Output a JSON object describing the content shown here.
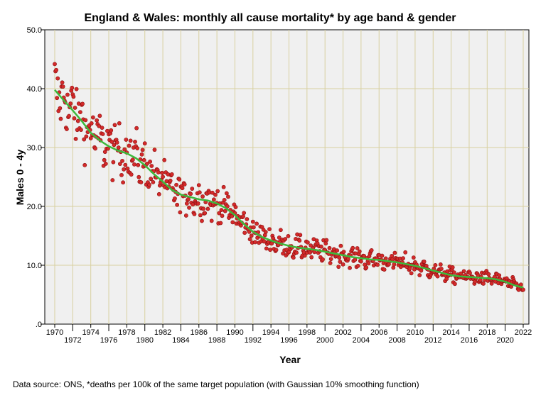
{
  "chart_data": {
    "type": "scatter",
    "title": "England & Wales: monthly all cause mortality* by age band & gender",
    "xlabel": "Year",
    "ylabel": "Males 0 - 4y",
    "xlim": [
      1969.5,
      2022.5
    ],
    "ylim": [
      0,
      50
    ],
    "y_ticks": [
      0,
      10,
      20,
      30,
      40,
      50
    ],
    "y_tick_labels": [
      ".0",
      "10.0",
      "20.0",
      "30.0",
      "40.0",
      "50.0"
    ],
    "x_ticks": [
      1970,
      1972,
      1974,
      1976,
      1978,
      1980,
      1982,
      1984,
      1986,
      1988,
      1990,
      1992,
      1994,
      1996,
      1998,
      2000,
      2002,
      2004,
      2006,
      2008,
      2010,
      2012,
      2014,
      2016,
      2018,
      2020,
      2022
    ],
    "x_tick_labels": [
      "1970",
      "1972",
      "1974",
      "1976",
      "1978",
      "1980",
      "1982",
      "1984",
      "1986",
      "1988",
      "1990",
      "1992",
      "1994",
      "1996",
      "1998",
      "2000",
      "2002",
      "2004",
      "2006",
      "2008",
      "2010",
      "2012",
      "2014",
      "2016",
      "2018",
      "2020",
      "2022"
    ],
    "grid": true,
    "series": [
      {
        "name": "monthly deaths per 100k",
        "kind": "points",
        "color": "#d42a2a",
        "note": "monthly points scattered around trend, relative spread approx 10%",
        "relative_spread": 0.1
      },
      {
        "name": "Gaussian 10% smoothing",
        "kind": "line",
        "color": "#3cb93c",
        "x": [
          1970,
          1971,
          1972,
          1973,
          1974,
          1975,
          1976,
          1977,
          1978,
          1979,
          1980,
          1981,
          1982,
          1983,
          1984,
          1985,
          1986,
          1987,
          1988,
          1989,
          1990,
          1991,
          1992,
          1993,
          1994,
          1995,
          1996,
          1997,
          1998,
          1999,
          2000,
          2001,
          2002,
          2003,
          2004,
          2005,
          2006,
          2007,
          2008,
          2009,
          2010,
          2011,
          2012,
          2013,
          2014,
          2015,
          2016,
          2017,
          2018,
          2019,
          2020,
          2021,
          2022
        ],
        "y": [
          39.8,
          38.0,
          36.3,
          34.5,
          32.5,
          31.2,
          30.2,
          29.5,
          29.0,
          28.2,
          27.0,
          25.5,
          24.2,
          22.8,
          22.0,
          21.6,
          21.2,
          21.0,
          20.5,
          19.7,
          18.5,
          17.0,
          15.7,
          14.8,
          14.2,
          13.7,
          13.3,
          13.0,
          12.8,
          12.6,
          12.3,
          12.0,
          11.7,
          11.4,
          11.2,
          11.0,
          10.9,
          10.7,
          10.5,
          10.2,
          9.9,
          9.5,
          9.1,
          8.7,
          8.3,
          8.1,
          8.0,
          7.9,
          7.8,
          7.6,
          7.2,
          6.6,
          6.2
        ]
      }
    ],
    "footnote": "Data source: ONS, *deaths per 100k of the same target population (with Gaussian 10% smoothing function)"
  }
}
